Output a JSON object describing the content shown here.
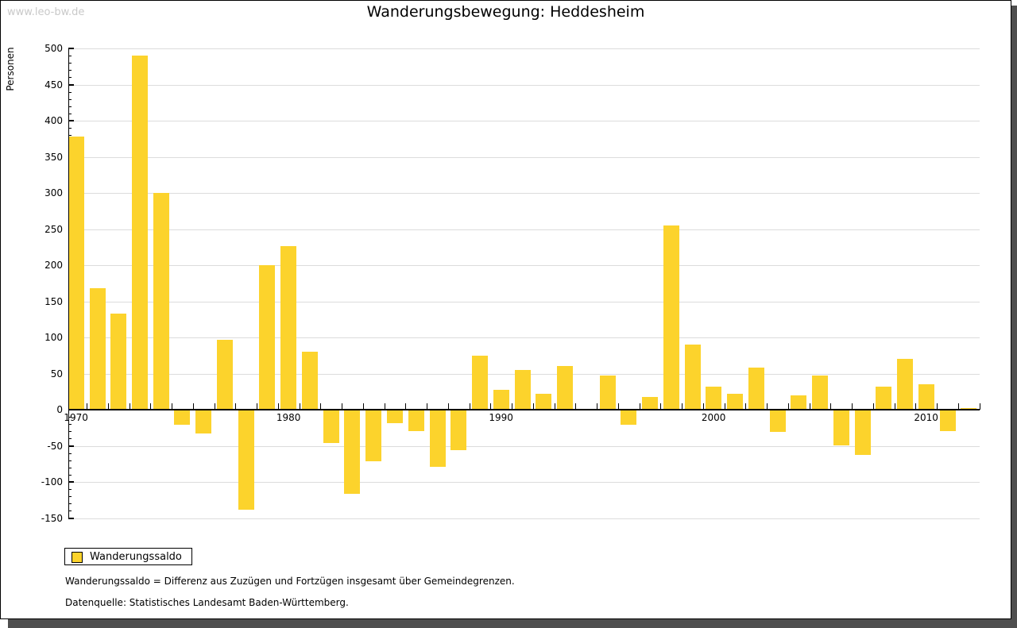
{
  "watermark": "www.leo-bw.de",
  "title": "Wanderungsbewegung: Heddesheim",
  "legend": {
    "label": "Wanderungssaldo",
    "swatch_color": "#fcd32c"
  },
  "footnotes": [
    "Wanderungssaldo = Differenz aus Zuzügen und Fortzügen insgesamt über Gemeindegrenzen.",
    "Datenquelle: Statistisches Landesamt Baden-Württemberg."
  ],
  "chart_data": {
    "type": "bar",
    "title": "Wanderungsbewegung: Heddesheim",
    "ylabel": "Personen",
    "xlabel": "",
    "series_name": "Wanderungssaldo",
    "years": [
      1970,
      1971,
      1972,
      1973,
      1974,
      1975,
      1976,
      1977,
      1978,
      1979,
      1980,
      1981,
      1982,
      1983,
      1984,
      1985,
      1986,
      1987,
      1988,
      1989,
      1990,
      1991,
      1992,
      1993,
      1994,
      1995,
      1996,
      1997,
      1998,
      1999,
      2000,
      2001,
      2002,
      2003,
      2004,
      2005,
      2006,
      2007,
      2008,
      2009,
      2010,
      2011,
      2012
    ],
    "values": [
      378,
      168,
      133,
      490,
      300,
      -20,
      -32,
      97,
      -137,
      200,
      226,
      80,
      -45,
      -115,
      -70,
      -18,
      -28,
      -78,
      -55,
      75,
      27,
      55,
      22,
      60,
      0,
      47,
      -20,
      18,
      255,
      90,
      32,
      22,
      58,
      -30,
      20,
      47,
      -48,
      -62,
      32,
      70,
      35,
      -28,
      2
    ],
    "ylim": [
      -150,
      500
    ],
    "ytick_step": 50,
    "yminor_tick_step": 10,
    "xticks_labeled": [
      1970,
      1980,
      1990,
      2000,
      2010
    ],
    "bar_color": "#fcd32c",
    "grid": true,
    "gridline_color": "#dcdcdc",
    "legend_position": "bottom-left"
  }
}
